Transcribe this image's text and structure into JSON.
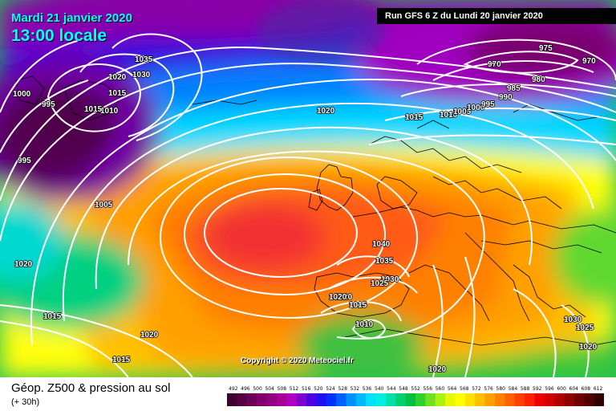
{
  "header": {
    "date": "Mardi 21 janvier 2020",
    "time": "13:00 locale",
    "run": "Run GFS 6 Z du Lundi 20 janvier 2020"
  },
  "copyright": "Copyright © 2020 Meteociel.fr",
  "legend": {
    "field": "Géop. Z500 & pression au sol",
    "lead": "(+ 30h)",
    "scale_colors": [
      "#3d0030",
      "#550044",
      "#6a0058",
      "#7f006c",
      "#930080",
      "#a80094",
      "#b000c0",
      "#8000d0",
      "#5000e0",
      "#2010f0",
      "#0030ff",
      "#0060ff",
      "#0090ff",
      "#00b8ff",
      "#00e0ff",
      "#00f0e0",
      "#00e0a8",
      "#00d070",
      "#00c040",
      "#30d030",
      "#70e020",
      "#b0f010",
      "#e8f800",
      "#ffff00",
      "#ffe000",
      "#ffc000",
      "#ffa000",
      "#ff8000",
      "#ff6000",
      "#ff4000",
      "#ff2000",
      "#ee0000",
      "#d00000",
      "#b00000",
      "#900000",
      "#700000",
      "#500000",
      "#300000"
    ],
    "scale_labels": [
      "492",
      "496",
      "500",
      "504",
      "508",
      "512",
      "516",
      "520",
      "524",
      "528",
      "532",
      "536",
      "540",
      "544",
      "548",
      "552",
      "556",
      "560",
      "564",
      "568",
      "572",
      "576",
      "580",
      "584",
      "588",
      "592",
      "596",
      "600",
      "604",
      "608",
      "612"
    ]
  },
  "isobar_labels": [
    "1035",
    "1030",
    "1020",
    "1015",
    "1010",
    "1015",
    "1000",
    "995",
    "995",
    "1005",
    "1020",
    "1015",
    "1015",
    "1020",
    "1020",
    "1015",
    "1010",
    "1005",
    "1000",
    "995",
    "975",
    "970",
    "970",
    "980",
    "985",
    "990",
    "1040",
    "1035",
    "1030",
    "1020",
    "1025",
    "1015",
    "1020",
    "1010",
    "1030",
    "1025",
    "1020",
    "1020"
  ]
}
